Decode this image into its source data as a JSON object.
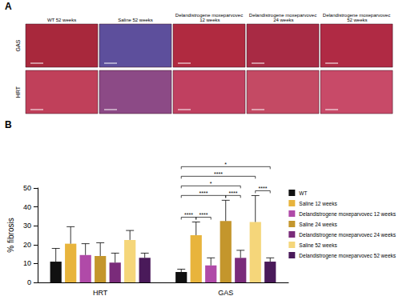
{
  "panel_a": {
    "label": "A",
    "columns": [
      "WT 52 weeks",
      "Saline 52 weeks",
      "Delandistrogene moxeparvovec 12 weeks",
      "Delandistrogene moxeparvovec 24 weeks",
      "Delandistrogene moxeparvovec 52 weeks"
    ],
    "rows": [
      "GAS",
      "HRT"
    ]
  },
  "chart_data": {
    "type": "bar",
    "title": "B",
    "categories": [
      "HRT",
      "GAS"
    ],
    "y_label": "% fibrosis",
    "ylim": [
      0,
      50
    ],
    "yticks": [
      0,
      10,
      20,
      30,
      40,
      50
    ],
    "grid": false,
    "legend": "right",
    "series": [
      {
        "name": "WT",
        "color": "#111111",
        "values": [
          11,
          5.5
        ],
        "errors": [
          7,
          1.5
        ]
      },
      {
        "name": "Saline 12 weeks",
        "color": "#e8b43c",
        "values": [
          20.5,
          25
        ],
        "errors": [
          9,
          7
        ]
      },
      {
        "name": "Delandistrogene moxeparvovec 12 weeks",
        "color": "#b04aa8",
        "values": [
          14.5,
          9
        ],
        "errors": [
          6,
          4
        ]
      },
      {
        "name": "Saline 24 weeks",
        "color": "#c4962c",
        "values": [
          14,
          32.5
        ],
        "errors": [
          7,
          11
        ]
      },
      {
        "name": "Delandistrogene moxeparvovec 24 weeks",
        "color": "#7a2b7a",
        "values": [
          10.5,
          13
        ],
        "errors": [
          5,
          4
        ]
      },
      {
        "name": "Saline 52 weeks",
        "color": "#f5d67a",
        "values": [
          22.5,
          32
        ],
        "errors": [
          5,
          14
        ]
      },
      {
        "name": "Delandistrogene moxeparvovec 52 weeks",
        "color": "#4a1a5a",
        "values": [
          13,
          11
        ],
        "errors": [
          2.5,
          2
        ]
      }
    ],
    "significance": [
      {
        "category": "GAS",
        "from": "WT",
        "to": "Saline 12 weeks",
        "label": "****"
      },
      {
        "category": "GAS",
        "from": "Saline 12 weeks",
        "to": "Delandistrogene moxeparvovec 12 weeks",
        "label": "****"
      },
      {
        "category": "GAS",
        "from": "Saline 24 weeks",
        "to": "Delandistrogene moxeparvovec 24 weeks",
        "label": "****"
      },
      {
        "category": "GAS",
        "from": "Saline 52 weeks",
        "to": "Delandistrogene moxeparvovec 52 weeks",
        "label": "****"
      },
      {
        "category": "GAS",
        "from": "WT",
        "to": "Saline 24 weeks",
        "label": "****"
      },
      {
        "category": "GAS",
        "from": "WT",
        "to": "Delandistrogene moxeparvovec 24 weeks",
        "label": "*"
      },
      {
        "category": "GAS",
        "from": "WT",
        "to": "Saline 52 weeks",
        "label": "****"
      },
      {
        "category": "GAS",
        "from": "WT",
        "to": "Delandistrogene moxeparvovec 52 weeks",
        "label": "*"
      }
    ]
  }
}
